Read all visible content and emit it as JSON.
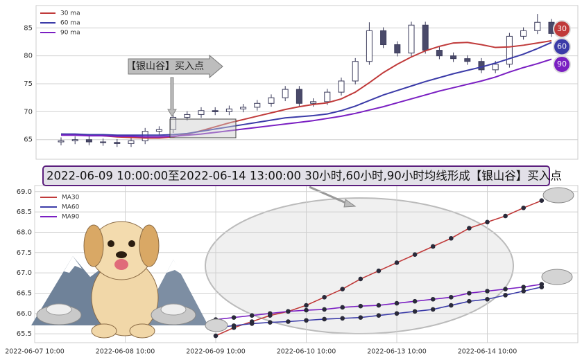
{
  "chart_data": [
    {
      "type": "candlestick",
      "open": [
        64.6,
        64.8,
        65.0,
        64.6,
        64.5,
        64.3,
        64.8,
        66.5,
        66.8,
        69.0,
        69.5,
        70.2,
        70.0,
        70.5,
        70.8,
        71.5,
        72.5,
        74.0,
        71.5,
        71.8,
        73.5,
        75.5,
        79.0,
        84.5,
        82.0,
        80.5,
        85.5,
        81.0,
        80.0,
        79.5,
        79.0,
        77.5,
        78.5,
        83.5,
        84.5,
        86.0
      ],
      "high": [
        65.4,
        65.6,
        65.6,
        65.2,
        65.1,
        65.4,
        67.1,
        67.4,
        69.6,
        70.1,
        70.8,
        70.8,
        71.1,
        71.4,
        72.1,
        73.1,
        74.6,
        74.6,
        72.4,
        74.1,
        76.1,
        79.6,
        86.0,
        85.1,
        82.6,
        86.1,
        86.1,
        81.6,
        80.6,
        80.1,
        79.6,
        79.1,
        84.1,
        85.1,
        87.5,
        86.6
      ],
      "low": [
        64.0,
        64.2,
        64.0,
        63.9,
        63.7,
        63.7,
        64.2,
        65.9,
        66.2,
        68.4,
        68.9,
        69.4,
        69.4,
        69.9,
        70.2,
        70.9,
        71.9,
        70.9,
        70.9,
        71.2,
        72.9,
        74.9,
        78.4,
        81.4,
        79.9,
        79.9,
        80.4,
        79.4,
        78.9,
        78.4,
        76.9,
        76.9,
        77.9,
        82.9,
        83.9,
        83.4
      ],
      "close": [
        64.8,
        65.0,
        64.6,
        64.5,
        64.3,
        64.8,
        66.5,
        66.8,
        69.0,
        69.5,
        70.2,
        70.0,
        70.5,
        70.8,
        71.5,
        72.5,
        74.0,
        71.5,
        71.8,
        73.5,
        75.5,
        79.0,
        84.5,
        82.0,
        80.5,
        85.5,
        81.0,
        80.0,
        79.5,
        79.0,
        77.5,
        78.5,
        83.5,
        84.5,
        86.0,
        84.0
      ],
      "series": [
        {
          "name": "30 ma",
          "color": "#c03a3a",
          "values": [
            66.0,
            65.9,
            65.8,
            65.7,
            65.5,
            65.4,
            65.3,
            65.3,
            65.5,
            66.0,
            66.6,
            67.3,
            68.0,
            68.6,
            69.2,
            69.8,
            70.4,
            70.9,
            71.3,
            71.6,
            72.3,
            73.5,
            75.2,
            77.0,
            78.5,
            79.8,
            80.9,
            81.7,
            82.3,
            82.4,
            82.0,
            81.5,
            81.6,
            81.9,
            82.3,
            82.7
          ]
        },
        {
          "name": "60 ma",
          "color": "#3b3ba8",
          "values": [
            66.0,
            66.0,
            65.9,
            65.9,
            65.8,
            65.8,
            65.8,
            65.8,
            65.9,
            66.1,
            66.5,
            66.9,
            67.3,
            67.7,
            68.1,
            68.5,
            68.9,
            69.1,
            69.3,
            69.6,
            70.2,
            71.0,
            72.0,
            73.0,
            73.8,
            74.6,
            75.4,
            76.1,
            76.8,
            77.4,
            78.0,
            78.7,
            79.5,
            80.3,
            81.3,
            82.4
          ]
        },
        {
          "name": "90 ma",
          "color": "#7a1fc2",
          "values": [
            65.8,
            65.8,
            65.7,
            65.7,
            65.6,
            65.6,
            65.5,
            65.5,
            65.6,
            65.8,
            66.0,
            66.3,
            66.6,
            66.9,
            67.2,
            67.5,
            67.8,
            68.1,
            68.4,
            68.8,
            69.2,
            69.7,
            70.3,
            70.9,
            71.6,
            72.3,
            73.0,
            73.7,
            74.3,
            74.9,
            75.5,
            76.2,
            77.1,
            77.9,
            78.6,
            79.4
          ]
        }
      ],
      "badges": [
        "30",
        "60",
        "90"
      ],
      "annotation": "【银山谷】买入点",
      "ylim": [
        61.5,
        89
      ],
      "yticks": [
        65,
        70,
        75,
        80,
        85
      ],
      "grid": true,
      "legend": "upper left"
    },
    {
      "type": "line",
      "title": "2022-06-09 10:00:00至2022-06-14 13:00:00 30小时,60小时,90小时均线形成【银山谷】买入点",
      "x": [
        10,
        11,
        12,
        13,
        14,
        15,
        16,
        17,
        18,
        19,
        20,
        21,
        22,
        23,
        24,
        25,
        26,
        27,
        28
      ],
      "series": [
        {
          "name": "MA30",
          "color": "#c03a3a",
          "values": [
            65.45,
            65.65,
            65.8,
            65.95,
            66.05,
            66.2,
            66.4,
            66.6,
            66.85,
            67.05,
            67.25,
            67.45,
            67.65,
            67.85,
            68.1,
            68.25,
            68.4,
            68.6,
            68.78
          ]
        },
        {
          "name": "MA60",
          "color": "#3b3ba8",
          "values": [
            65.65,
            65.7,
            65.75,
            65.78,
            65.8,
            65.83,
            65.86,
            65.88,
            65.9,
            65.95,
            66.0,
            66.05,
            66.1,
            66.2,
            66.3,
            66.35,
            66.45,
            66.55,
            66.65
          ]
        },
        {
          "name": "MA90",
          "color": "#7a1fc2",
          "values": [
            65.85,
            65.9,
            65.95,
            66.0,
            66.05,
            66.08,
            66.1,
            66.15,
            66.18,
            66.2,
            66.25,
            66.3,
            66.35,
            66.4,
            66.5,
            66.55,
            66.6,
            66.65,
            66.72
          ]
        }
      ],
      "xlim": [
        0,
        30
      ],
      "xticks": [
        {
          "value": 0,
          "label": "2022-06-07 10:00"
        },
        {
          "value": 5,
          "label": "2022-06-08 10:00"
        },
        {
          "value": 10,
          "label": "2022-06-09 10:00"
        },
        {
          "value": 15,
          "label": "2022-06-10 10:00"
        },
        {
          "value": 20,
          "label": "2022-06-13 10:00"
        },
        {
          "value": 25,
          "label": "2022-06-14 10:00"
        }
      ],
      "ylim": [
        65.28,
        69.15
      ],
      "yticks": [
        65.5,
        {
          "value": 66,
          "label": "66.0"
        },
        66.5,
        {
          "value": 67,
          "label": "67.0"
        },
        67.5,
        {
          "value": 68,
          "label": "68.0"
        },
        68.5,
        {
          "value": 69,
          "label": "69.0"
        }
      ],
      "grid": true,
      "legend": "upper left"
    }
  ]
}
